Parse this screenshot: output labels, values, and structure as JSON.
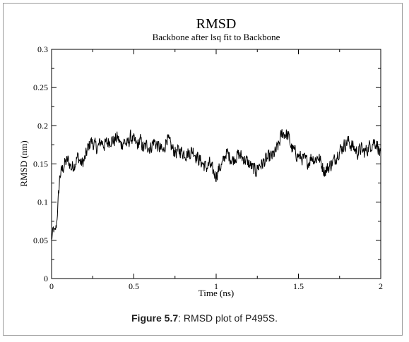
{
  "caption": {
    "label": "Figure 5.7",
    "text": ": RMSD plot of P495S."
  },
  "chart_data": {
    "type": "line",
    "title": "RMSD",
    "subtitle": "Backbone after lsq fit to Backbone",
    "xlabel": "Time (ns)",
    "ylabel": "RMSD (nm)",
    "xlim": [
      0,
      2
    ],
    "ylim": [
      0,
      0.3
    ],
    "x_ticks": [
      0,
      0.5,
      1,
      1.5,
      2
    ],
    "x_tick_labels": [
      "0",
      "0.5",
      "1",
      "1.5",
      "2"
    ],
    "y_ticks": [
      0,
      0.05,
      0.1,
      0.15,
      0.2,
      0.25,
      0.3
    ],
    "y_tick_labels": [
      "0",
      "0.05",
      "0.1",
      "0.15",
      "0.2",
      "0.25",
      "0.3"
    ],
    "grid": false,
    "colors": {
      "line": "#000000",
      "axes": "#000000"
    },
    "series": [
      {
        "x": [
          0,
          0.01,
          0.02,
          0.03,
          0.04,
          0.05,
          0.06,
          0.08,
          0.1,
          0.12,
          0.14,
          0.16,
          0.18,
          0.2,
          0.22,
          0.24,
          0.26,
          0.28,
          0.3,
          0.32,
          0.34,
          0.36,
          0.38,
          0.4,
          0.42,
          0.44,
          0.46,
          0.48,
          0.5,
          0.52,
          0.54,
          0.56,
          0.58,
          0.6,
          0.62,
          0.64,
          0.66,
          0.68,
          0.7,
          0.72,
          0.74,
          0.76,
          0.78,
          0.8,
          0.82,
          0.84,
          0.86,
          0.88,
          0.9,
          0.92,
          0.94,
          0.96,
          0.98,
          1.0,
          1.02,
          1.04,
          1.06,
          1.08,
          1.1,
          1.12,
          1.14,
          1.16,
          1.18,
          1.2,
          1.22,
          1.24,
          1.26,
          1.28,
          1.3,
          1.32,
          1.34,
          1.36,
          1.38,
          1.4,
          1.42,
          1.44,
          1.46,
          1.48,
          1.5,
          1.52,
          1.54,
          1.56,
          1.58,
          1.6,
          1.62,
          1.64,
          1.66,
          1.68,
          1.7,
          1.72,
          1.74,
          1.76,
          1.78,
          1.8,
          1.82,
          1.84,
          1.86,
          1.88,
          1.9,
          1.92,
          1.94,
          1.96,
          1.98,
          2.0
        ],
        "y": [
          0.05,
          0.065,
          0.06,
          0.07,
          0.1,
          0.135,
          0.14,
          0.15,
          0.155,
          0.145,
          0.15,
          0.16,
          0.15,
          0.155,
          0.17,
          0.18,
          0.175,
          0.17,
          0.18,
          0.175,
          0.178,
          0.182,
          0.18,
          0.185,
          0.175,
          0.18,
          0.175,
          0.185,
          0.18,
          0.175,
          0.18,
          0.17,
          0.175,
          0.17,
          0.18,
          0.175,
          0.17,
          0.165,
          0.185,
          0.175,
          0.168,
          0.165,
          0.168,
          0.165,
          0.163,
          0.165,
          0.168,
          0.16,
          0.155,
          0.15,
          0.145,
          0.15,
          0.14,
          0.135,
          0.145,
          0.15,
          0.165,
          0.16,
          0.155,
          0.16,
          0.162,
          0.158,
          0.155,
          0.15,
          0.145,
          0.14,
          0.148,
          0.15,
          0.155,
          0.158,
          0.16,
          0.165,
          0.175,
          0.19,
          0.19,
          0.185,
          0.17,
          0.165,
          0.16,
          0.158,
          0.155,
          0.152,
          0.16,
          0.155,
          0.16,
          0.15,
          0.14,
          0.145,
          0.15,
          0.155,
          0.165,
          0.17,
          0.175,
          0.18,
          0.175,
          0.17,
          0.165,
          0.17,
          0.165,
          0.17,
          0.175,
          0.18,
          0.175,
          0.16
        ]
      }
    ]
  }
}
